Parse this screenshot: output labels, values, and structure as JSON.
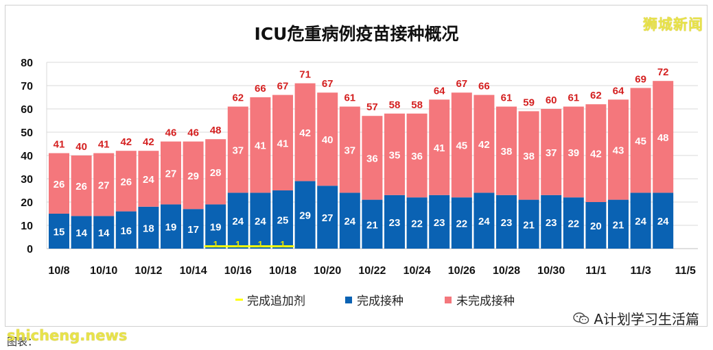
{
  "brand": "狮城新闻",
  "footer": {
    "site": "shicheng.news",
    "caption": "图表："
  },
  "wechat": {
    "label": "A计划学习生活篇"
  },
  "chart_data": {
    "type": "bar",
    "title": "ICU危重病例疫苗接种概况",
    "stacked": true,
    "ylim": [
      0,
      80
    ],
    "yticks": [
      0,
      10,
      20,
      30,
      40,
      50,
      60,
      70,
      80
    ],
    "grid": true,
    "legend_position": "bottom",
    "x_tick_labels": [
      "10/8",
      "10/10",
      "10/12",
      "10/14",
      "10/16",
      "10/18",
      "10/20",
      "10/22",
      "10/24",
      "10/26",
      "10/28",
      "10/30",
      "11/1",
      "11/3",
      "11/5"
    ],
    "categories": [
      "10/8",
      "10/9",
      "10/10",
      "10/11",
      "10/12",
      "10/13",
      "10/14",
      "10/15",
      "10/16",
      "10/17",
      "10/18",
      "10/19",
      "10/20",
      "10/21",
      "10/22",
      "10/23",
      "10/24",
      "10/25",
      "10/26",
      "10/27",
      "10/28",
      "10/29",
      "10/30",
      "10/31",
      "11/1",
      "11/2",
      "11/3",
      "11/4"
    ],
    "series": [
      {
        "name": "完成追加剂",
        "color": "#ffff00",
        "style": "line",
        "values": [
          0,
          0,
          0,
          0,
          0,
          0,
          0,
          1,
          1,
          1,
          1,
          0,
          0,
          0,
          0,
          0,
          0,
          0,
          0,
          0,
          0,
          0,
          0,
          0,
          0,
          0,
          0,
          0
        ]
      },
      {
        "name": "完成接种",
        "color": "#0a62b3",
        "values": [
          15,
          14,
          14,
          16,
          18,
          19,
          17,
          19,
          24,
          24,
          25,
          29,
          27,
          24,
          21,
          23,
          22,
          23,
          22,
          24,
          23,
          21,
          23,
          22,
          20,
          21,
          24,
          24
        ]
      },
      {
        "name": "未完成接种",
        "color": "#f4777c",
        "values": [
          26,
          26,
          27,
          26,
          24,
          27,
          29,
          28,
          37,
          41,
          41,
          42,
          40,
          37,
          36,
          35,
          36,
          41,
          45,
          42,
          38,
          38,
          37,
          39,
          42,
          43,
          45,
          48
        ]
      }
    ],
    "totals": [
      41,
      40,
      41,
      42,
      42,
      46,
      46,
      48,
      62,
      66,
      67,
      71,
      67,
      61,
      57,
      58,
      58,
      64,
      67,
      66,
      61,
      59,
      60,
      61,
      62,
      64,
      69,
      72
    ],
    "colors": {
      "total_label": "#d42020",
      "grid": "#d9d9d9",
      "axis_text": "#111111"
    }
  }
}
